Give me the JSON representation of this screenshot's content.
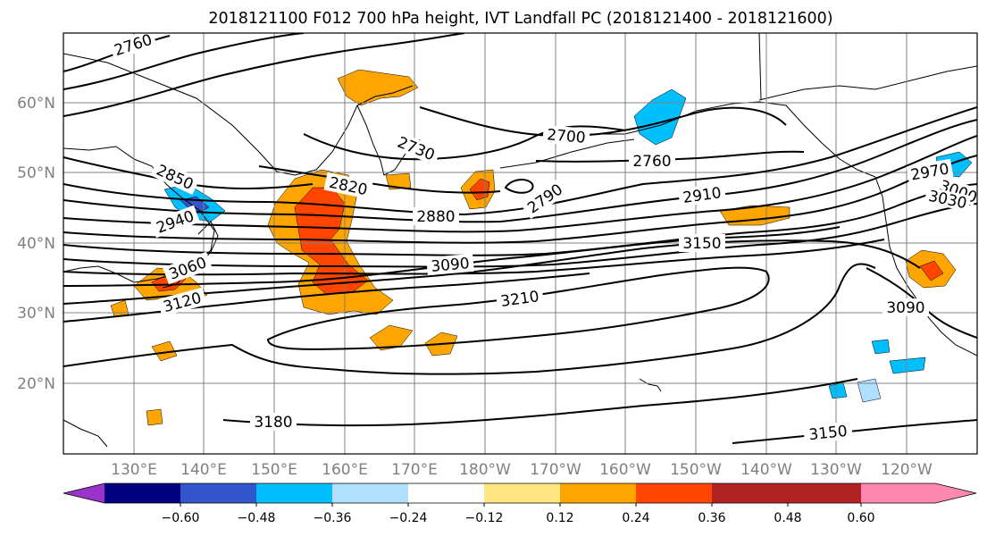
{
  "title": "2018121100 F012 700 hPa height, IVT Landfall PC (2018121400 - 2018121600)",
  "lat_labels": [
    "60°N",
    "50°N",
    "40°N",
    "30°N",
    "20°N"
  ],
  "lon_labels": [
    "130°E",
    "140°E",
    "150°E",
    "160°E",
    "170°E",
    "180°W",
    "170°W",
    "160°W",
    "150°W",
    "140°W",
    "130°W",
    "120°W"
  ],
  "contour_labels": [
    "2760",
    "2730",
    "2700",
    "2760",
    "2850",
    "2820",
    "2790",
    "2880",
    "2910",
    "2970",
    "3000",
    "3030",
    "2940",
    "3060",
    "3090",
    "3150",
    "3120",
    "3210",
    "3090",
    "3180",
    "3150"
  ],
  "colorbar": {
    "colors": [
      "#9933cc",
      "#000080",
      "#3355cc",
      "#00bfff",
      "#b0e0ff",
      "#ffffff",
      "#ffe680",
      "#ffa500",
      "#ff4500",
      "#b22222",
      "#ff88b0"
    ],
    "tick_labels": [
      "−0.60",
      "−0.48",
      "−0.36",
      "−0.24",
      "−0.12",
      "0.12",
      "0.24",
      "0.36",
      "0.48",
      "0.60"
    ]
  }
}
